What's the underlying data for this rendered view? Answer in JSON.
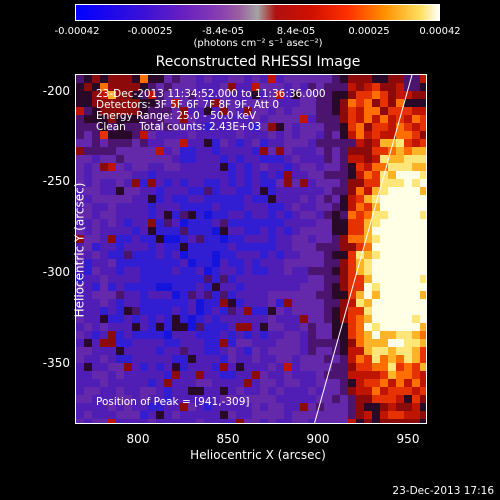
{
  "colorbar": {
    "ticks": [
      "-0.00042",
      "-0.00025",
      "-8.4e-05",
      "8.4e-05",
      "0.00025",
      "0.00042"
    ],
    "units": "(photons cm⁻² s⁻¹ asec⁻²)"
  },
  "title": "Reconstructed RHESSI Image",
  "info": {
    "line1": "23-Dec-2013 11:34:52.000 to 11:36:36.000",
    "line2": "Detectors: 3F 5F 6F 7F 8F 9F, Att 0",
    "line3": "Energy Range: 25.0 - 50.0 keV",
    "line4": "Clean    Total counts: 2.43E+03",
    "peak": "Position of Peak = [941,-309]"
  },
  "axes": {
    "xlabel": "Heliocentric X (arcsec)",
    "ylabel": "Heliocentric Y (arcsec)",
    "xticks": [
      "800",
      "850",
      "900",
      "950"
    ],
    "yticks": [
      "-200",
      "-250",
      "-300",
      "-350"
    ]
  },
  "timestamp": "23-Dec-2013 17:16",
  "colors": {
    "background": "#000000",
    "foreground": "#ffffff"
  }
}
